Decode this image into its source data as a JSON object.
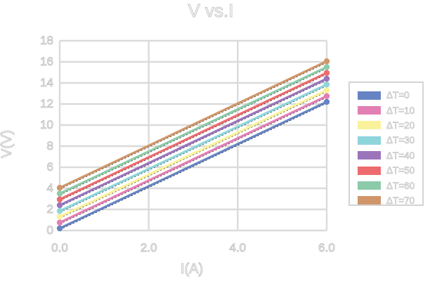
{
  "chart_data": {
    "type": "line",
    "title": "V vs.I",
    "xlabel": "I(A)",
    "ylabel": "V(V)",
    "xlim": [
      0,
      6
    ],
    "ylim": [
      0,
      18
    ],
    "x": [
      0,
      6
    ],
    "xticks": {
      "values": [
        0,
        2,
        4,
        6
      ],
      "labels": [
        "0.0",
        "2.0",
        "4.0",
        "6.0"
      ]
    },
    "yticks": {
      "values": [
        0,
        2,
        4,
        6,
        8,
        10,
        12,
        14,
        16,
        18
      ],
      "labels": [
        "0",
        "2",
        "4",
        "6",
        "8",
        "10",
        "12",
        "14",
        "16",
        "18"
      ]
    },
    "grid": true,
    "legend_position": "right",
    "markers": "circles at endpoints",
    "trendline": {
      "style": "dashed",
      "color": "#1a1a1a"
    },
    "series": [
      {
        "name": "ΔT=0",
        "color": "#6684C3",
        "values": [
          0.2,
          12.2
        ]
      },
      {
        "name": "ΔT=10",
        "color": "#E27FB4",
        "values": [
          0.75,
          12.75
        ]
      },
      {
        "name": "ΔT=20",
        "color": "#F9F29B",
        "values": [
          1.3,
          13.3
        ]
      },
      {
        "name": "ΔT=30",
        "color": "#8ED5DB",
        "values": [
          1.85,
          13.85
        ]
      },
      {
        "name": "ΔT=40",
        "color": "#9B74BB",
        "values": [
          2.4,
          14.4
        ]
      },
      {
        "name": "ΔT=50",
        "color": "#ED6B6E",
        "values": [
          2.95,
          14.95
        ]
      },
      {
        "name": "ΔT=60",
        "color": "#8BCBA9",
        "values": [
          3.5,
          15.5
        ]
      },
      {
        "name": "ΔT=70",
        "color": "#D0966A",
        "values": [
          4.05,
          16.05
        ]
      }
    ],
    "style": {
      "gridline_color": "#dbdbdb",
      "text_outline_color": "#c6c6c6",
      "legend_border_color": "#d4d4d4",
      "background": "#ffffff"
    }
  }
}
